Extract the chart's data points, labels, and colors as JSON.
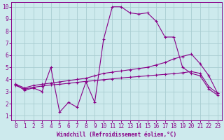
{
  "xlabel": "Windchill (Refroidissement éolien,°C)",
  "bg_color": "#cdeaed",
  "grid_color": "#a8cdd1",
  "line_color": "#880088",
  "x_ticks": [
    0,
    1,
    2,
    3,
    4,
    5,
    6,
    7,
    8,
    9,
    10,
    11,
    12,
    13,
    14,
    15,
    16,
    17,
    18,
    19,
    20,
    21,
    22,
    23
  ],
  "y_ticks": [
    1,
    2,
    3,
    4,
    5,
    6,
    7,
    8,
    9,
    10
  ],
  "ylim": [
    0.6,
    10.4
  ],
  "xlim": [
    -0.5,
    23.5
  ],
  "curve1_x": [
    0,
    1,
    2,
    3,
    4,
    5,
    6,
    7,
    8,
    9,
    10,
    11,
    12,
    13,
    14,
    15,
    16,
    17,
    18,
    19,
    20,
    21,
    22,
    23
  ],
  "curve1_y": [
    3.6,
    3.1,
    3.3,
    3.0,
    5.0,
    1.3,
    2.1,
    1.7,
    3.8,
    2.1,
    7.3,
    10.0,
    10.0,
    9.5,
    9.4,
    9.5,
    8.8,
    7.5,
    7.5,
    5.0,
    4.5,
    4.3,
    3.2,
    2.7
  ],
  "curve2_x": [
    0,
    1,
    2,
    3,
    4,
    5,
    6,
    7,
    8,
    9,
    10,
    11,
    12,
    13,
    14,
    15,
    16,
    17,
    18,
    19,
    20,
    21,
    22,
    23
  ],
  "curve2_y": [
    3.6,
    3.3,
    3.5,
    3.6,
    3.7,
    3.8,
    3.9,
    4.0,
    4.1,
    4.3,
    4.5,
    4.6,
    4.7,
    4.8,
    4.9,
    5.0,
    5.2,
    5.4,
    5.7,
    5.9,
    6.1,
    5.3,
    4.3,
    2.85
  ],
  "curve3_x": [
    0,
    1,
    2,
    3,
    4,
    5,
    6,
    7,
    8,
    9,
    10,
    11,
    12,
    13,
    14,
    15,
    16,
    17,
    18,
    19,
    20,
    21,
    22,
    23
  ],
  "curve3_y": [
    3.5,
    3.2,
    3.35,
    3.45,
    3.55,
    3.6,
    3.68,
    3.76,
    3.84,
    3.9,
    3.98,
    4.05,
    4.12,
    4.18,
    4.24,
    4.3,
    4.36,
    4.42,
    4.48,
    4.55,
    4.65,
    4.5,
    3.4,
    2.85
  ]
}
